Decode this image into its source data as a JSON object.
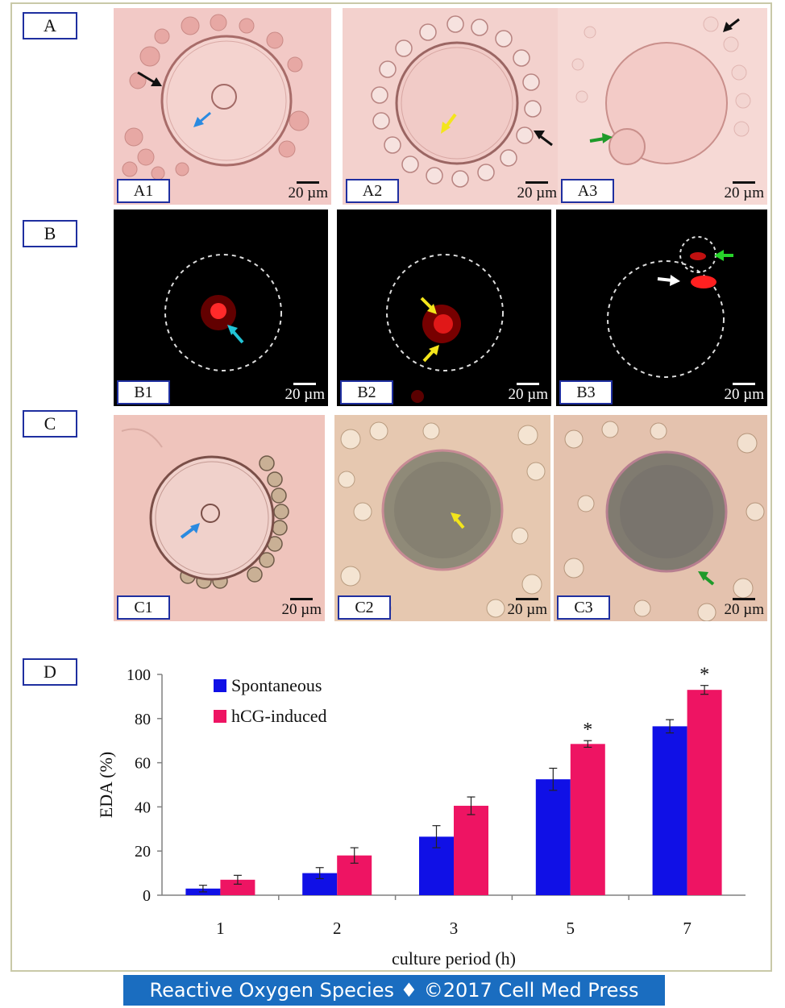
{
  "row_labels": {
    "a": "A",
    "b": "B",
    "c": "C",
    "d": "D"
  },
  "panels": {
    "a1": {
      "label": "A1",
      "scale": "20 µm"
    },
    "a2": {
      "label": "A2",
      "scale": "20 µm"
    },
    "a3": {
      "label": "A3",
      "scale": "20 µm"
    },
    "b1": {
      "label": "B1",
      "scale": "20 µm"
    },
    "b2": {
      "label": "B2",
      "scale": "20 µm"
    },
    "b3": {
      "label": "B3",
      "scale": "20 µm"
    },
    "c1": {
      "label": "C1",
      "scale": "20 µm"
    },
    "c2": {
      "label": "C2",
      "scale": "20 µm"
    },
    "c3": {
      "label": "C3",
      "scale": "20 µm"
    }
  },
  "arrow_colors": {
    "black": "#111111",
    "blue": "#2a8ae0",
    "yellow": "#f3e51c",
    "green": "#1f9a2a",
    "cyan": "#22c4d6",
    "white": "#ffffff"
  },
  "chart_data": {
    "type": "bar",
    "categories": [
      "1",
      "2",
      "3",
      "5",
      "7"
    ],
    "series": [
      {
        "name": "Spontaneous",
        "color": "#1010e6",
        "values": [
          3,
          10,
          26.5,
          52.5,
          76.5
        ],
        "errors": [
          1.5,
          2.5,
          5,
          5,
          3
        ]
      },
      {
        "name": "hCG-induced",
        "color": "#ee1463",
        "values": [
          7,
          18,
          40.5,
          68.5,
          93
        ],
        "errors": [
          2,
          3.5,
          4,
          1.5,
          2
        ]
      }
    ],
    "significance": [
      "",
      "",
      "",
      "*",
      "*"
    ],
    "xlabel": "culture period (h)",
    "ylabel": "EDA (%)",
    "ylim": [
      0,
      100
    ],
    "yticks": [
      0,
      20,
      40,
      60,
      80,
      100
    ],
    "legend": "top-left",
    "grid": false
  },
  "footer": "Reactive Oxygen Species ♦ ©2017 Cell Med Press"
}
